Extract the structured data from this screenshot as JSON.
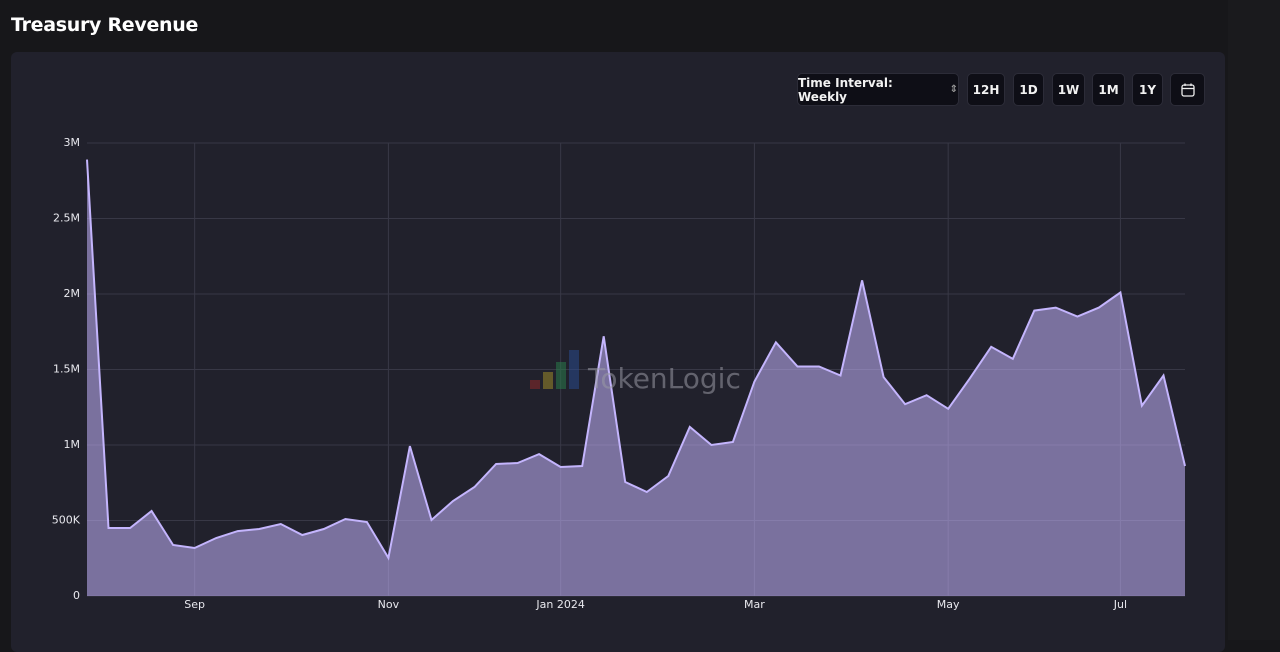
{
  "page": {
    "title": "Treasury Revenue",
    "interval_label": "Time Interval: Weekly",
    "buttons": [
      "12H",
      "1D",
      "1W",
      "1M",
      "1Y"
    ],
    "watermark": "TokenLogic"
  },
  "chart_data": {
    "type": "area",
    "categories": [
      null,
      null,
      null,
      null,
      null,
      "Sep",
      null,
      null,
      null,
      null,
      null,
      null,
      null,
      null,
      "Nov",
      null,
      null,
      null,
      null,
      null,
      null,
      null,
      "Jan 2024",
      null,
      null,
      null,
      null,
      null,
      null,
      null,
      null,
      "Mar",
      null,
      null,
      null,
      null,
      null,
      null,
      null,
      null,
      "May",
      null,
      null,
      null,
      null,
      null,
      null,
      null,
      "Jul",
      null,
      null,
      null
    ],
    "values": [
      2890000,
      450000,
      450000,
      563000,
      338000,
      318000,
      384000,
      430000,
      444000,
      477000,
      404000,
      444000,
      510000,
      490000,
      252000,
      993000,
      503000,
      629000,
      722000,
      874000,
      881000,
      940000,
      854000,
      861000,
      1720000,
      755000,
      689000,
      795000,
      1120000,
      1000000,
      1020000,
      1420000,
      1680000,
      1520000,
      1520000,
      1460000,
      2090000,
      1450000,
      1270000,
      1330000,
      1240000,
      1440000,
      1650000,
      1570000,
      1890000,
      1910000,
      1850000,
      1910000,
      2010000,
      1260000,
      1460000,
      861000
    ],
    "color": "#c4b5fd",
    "ylim": [
      0,
      3000000
    ],
    "yticks": [
      0,
      {
        "value": 500000,
        "label": "500K"
      },
      {
        "value": 1000000,
        "label": "1M"
      },
      {
        "value": 1500000,
        "label": "1.5M"
      },
      {
        "value": 2000000,
        "label": "2M"
      },
      {
        "value": 2500000,
        "label": "2.5M"
      },
      {
        "value": 3000000,
        "label": "3M"
      }
    ],
    "grid": true
  }
}
